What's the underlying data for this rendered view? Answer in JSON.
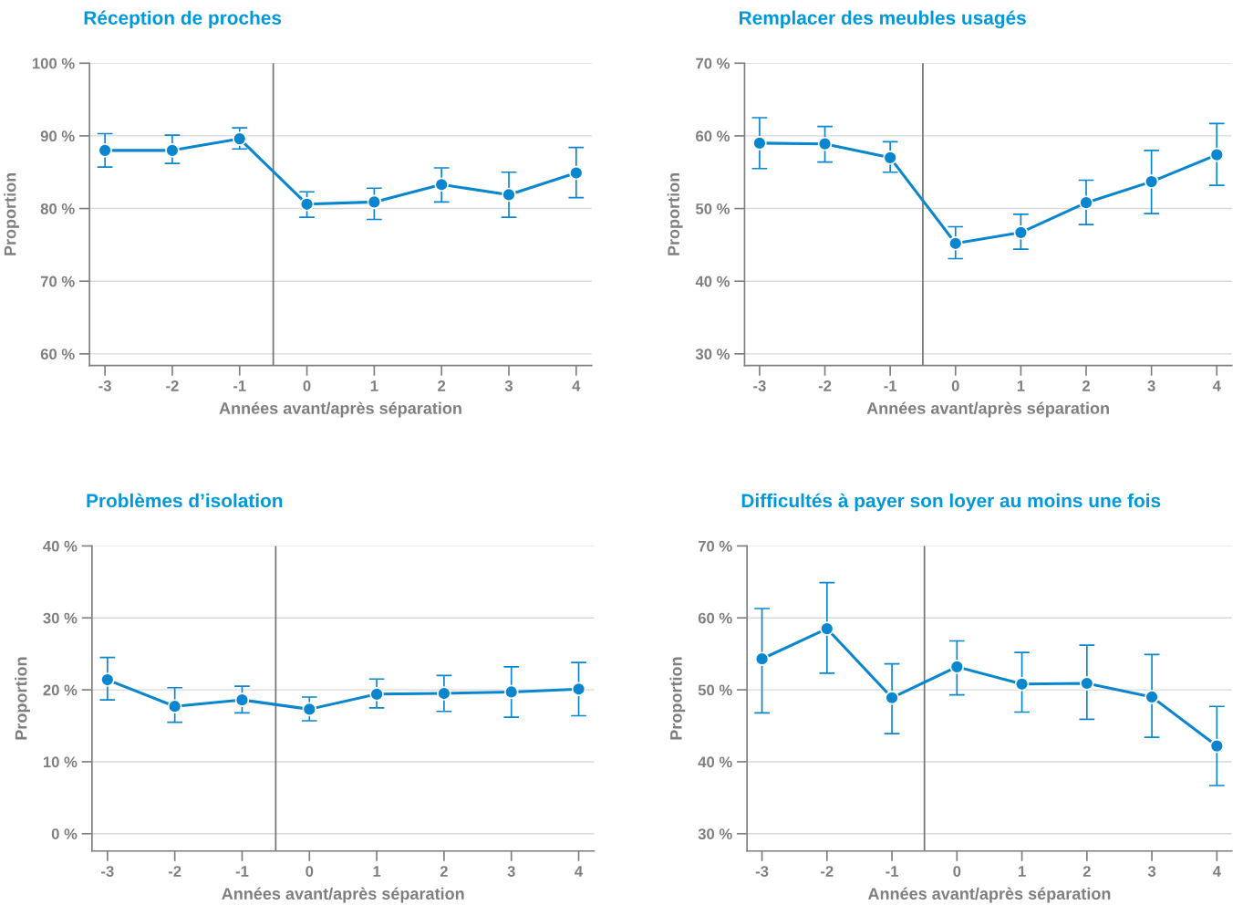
{
  "chart_data": [
    {
      "type": "line",
      "title": "Réception de proches",
      "xlabel": "Années avant/après séparation",
      "ylabel": "Proportion",
      "x": [
        -3,
        -2,
        -1,
        0,
        1,
        2,
        3,
        4
      ],
      "xlim": [
        -3.23,
        4.23
      ],
      "xticks": [
        -3,
        -2,
        -1,
        0,
        1,
        2,
        3,
        4
      ],
      "ylim": [
        58.4,
        100
      ],
      "yticks": [
        {
          "value": 60,
          "label": "60 %"
        },
        {
          "value": 70,
          "label": "70 %"
        },
        {
          "value": 80,
          "label": "80 %"
        },
        {
          "value": 90,
          "label": "90 %"
        },
        {
          "value": 100,
          "label": "100 %"
        }
      ],
      "series": [
        {
          "color": "#0a86cf",
          "values": [
            88.0,
            88.0,
            89.6,
            80.6,
            80.9,
            83.3,
            81.9,
            84.9
          ],
          "errors": [
            [
              85.7,
              90.3
            ],
            [
              86.2,
              90.1
            ],
            [
              88.2,
              91.1
            ],
            [
              78.8,
              82.3
            ],
            [
              78.5,
              82.8
            ],
            [
              80.9,
              85.6
            ],
            [
              78.8,
              85.0
            ],
            [
              81.5,
              88.4
            ]
          ]
        }
      ],
      "ref_lines": [
        {
          "axis": "x",
          "value": -0.5,
          "color": "#707070"
        }
      ],
      "grid": "y",
      "marker": "circle",
      "line_style": "solid"
    },
    {
      "type": "line",
      "title": "Remplacer des meubles usagés",
      "xlabel": "Années avant/après séparation",
      "ylabel": "Proportion",
      "x": [
        -3,
        -2,
        -1,
        0,
        1,
        2,
        3,
        4
      ],
      "xlim": [
        -3.23,
        4.23
      ],
      "xticks": [
        -3,
        -2,
        -1,
        0,
        1,
        2,
        3,
        4
      ],
      "ylim": [
        28.4,
        70
      ],
      "yticks": [
        {
          "value": 30,
          "label": "30 %"
        },
        {
          "value": 40,
          "label": "40 %"
        },
        {
          "value": 50,
          "label": "50 %"
        },
        {
          "value": 60,
          "label": "60 %"
        },
        {
          "value": 70,
          "label": "70 %"
        }
      ],
      "series": [
        {
          "color": "#0a86cf",
          "values": [
            59.0,
            58.9,
            57.0,
            45.2,
            46.7,
            50.8,
            53.7,
            57.4
          ],
          "errors": [
            [
              55.5,
              62.5
            ],
            [
              56.4,
              61.3
            ],
            [
              55.0,
              59.2
            ],
            [
              43.1,
              47.5
            ],
            [
              44.4,
              49.2
            ],
            [
              47.8,
              53.9
            ],
            [
              49.3,
              58.0
            ],
            [
              53.2,
              61.7
            ]
          ]
        }
      ],
      "ref_lines": [
        {
          "axis": "x",
          "value": -0.5,
          "color": "#707070"
        }
      ],
      "grid": "y",
      "marker": "circle",
      "line_style": "solid"
    },
    {
      "type": "line",
      "title": "Problèmes d’isolation",
      "xlabel": "Années avant/après séparation",
      "ylabel": "Proportion",
      "x": [
        -3,
        -2,
        -1,
        0,
        1,
        2,
        3,
        4
      ],
      "xlim": [
        -3.23,
        4.23
      ],
      "xticks": [
        -3,
        -2,
        -1,
        0,
        1,
        2,
        3,
        4
      ],
      "ylim": [
        -2.4,
        40
      ],
      "yticks": [
        {
          "value": 0,
          "label": "0 %"
        },
        {
          "value": 10,
          "label": "10 %"
        },
        {
          "value": 20,
          "label": "20 %"
        },
        {
          "value": 30,
          "label": "30 %"
        },
        {
          "value": 40,
          "label": "40 %"
        }
      ],
      "series": [
        {
          "color": "#0a86cf",
          "values": [
            21.4,
            17.7,
            18.6,
            17.3,
            19.4,
            19.5,
            19.7,
            20.1
          ],
          "errors": [
            [
              18.6,
              24.5
            ],
            [
              15.5,
              20.3
            ],
            [
              16.8,
              20.5
            ],
            [
              15.7,
              19.0
            ],
            [
              17.5,
              21.5
            ],
            [
              17.0,
              22.0
            ],
            [
              16.2,
              23.2
            ],
            [
              16.4,
              23.8
            ]
          ]
        }
      ],
      "ref_lines": [
        {
          "axis": "x",
          "value": -0.5,
          "color": "#707070"
        }
      ],
      "grid": "y",
      "marker": "circle",
      "line_style": "solid"
    },
    {
      "type": "line",
      "title": "Difficultés à payer son loyer au moins une fois",
      "xlabel": "Années avant/après séparation",
      "ylabel": "Proportion",
      "x": [
        -3,
        -2,
        -1,
        0,
        1,
        2,
        3,
        4
      ],
      "xlim": [
        -3.23,
        4.23
      ],
      "xticks": [
        -3,
        -2,
        -1,
        0,
        1,
        2,
        3,
        4
      ],
      "ylim": [
        27.6,
        70
      ],
      "yticks": [
        {
          "value": 30,
          "label": "30 %"
        },
        {
          "value": 40,
          "label": "40 %"
        },
        {
          "value": 50,
          "label": "50 %"
        },
        {
          "value": 60,
          "label": "60 %"
        },
        {
          "value": 70,
          "label": "70 %"
        }
      ],
      "series": [
        {
          "color": "#0a86cf",
          "values": [
            54.3,
            58.5,
            48.9,
            53.2,
            50.8,
            50.9,
            49.0,
            42.2
          ],
          "errors": [
            [
              46.8,
              61.3
            ],
            [
              52.3,
              64.9
            ],
            [
              43.9,
              53.6
            ],
            [
              49.3,
              56.8
            ],
            [
              46.9,
              55.2
            ],
            [
              45.9,
              56.2
            ],
            [
              43.4,
              54.9
            ],
            [
              36.7,
              47.7
            ]
          ]
        }
      ],
      "ref_lines": [
        {
          "axis": "x",
          "value": -0.5,
          "color": "#707070"
        }
      ],
      "grid": "y",
      "marker": "circle",
      "line_style": "solid"
    }
  ]
}
